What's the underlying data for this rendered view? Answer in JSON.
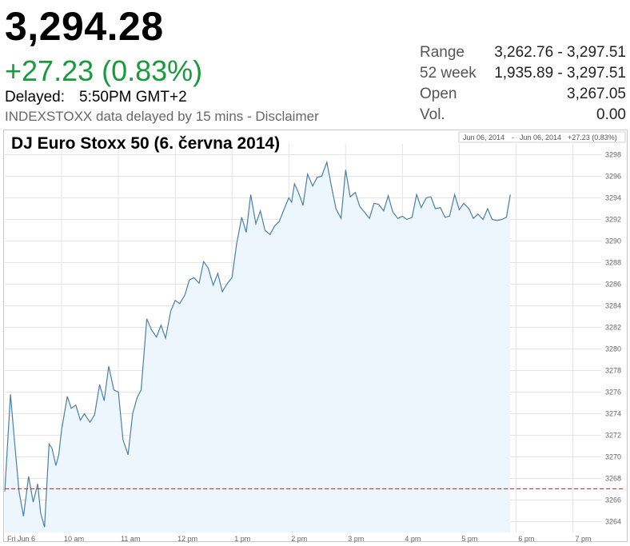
{
  "quote": {
    "price": "3,294.28",
    "change": "+27.23 (0.83%)",
    "delayed_label": "Delayed:",
    "delayed_time": "5:50PM GMT+2",
    "source_note": "INDEXSTOXX data delayed by 15 mins - Disclaimer"
  },
  "stats": [
    {
      "label": "Range",
      "value": "3,262.76 - 3,297.51"
    },
    {
      "label": "52 week",
      "value": "1,935.89 - 3,297.51"
    },
    {
      "label": "Open",
      "value": "3,267.05"
    },
    {
      "label": "Vol.",
      "value": "0.00"
    }
  ],
  "colors": {
    "line": "#4a7fa8",
    "fill": "#eef6fd",
    "positive": "#1a9a3e",
    "reference_line": "#a52a2a",
    "grid": "#e4e4e4"
  },
  "chart_data": {
    "type": "area",
    "title": "DJ Euro Stoxx 50 (6. června 2014)",
    "legend": {
      "start": "Jun 06, 2014",
      "separator": "-",
      "end": "Jun 06, 2014",
      "change": "+27.23 (0.83%)"
    },
    "x_labels": [
      "Fri Jun 6",
      "10 am",
      "11 am",
      "12 pm",
      "1 pm",
      "2 pm",
      "3 pm",
      "4 pm",
      "5 pm",
      "6 pm",
      "7 pm"
    ],
    "x_label_hours": [
      9,
      10,
      11,
      12,
      13,
      14,
      15,
      16,
      17,
      18,
      19
    ],
    "xlim": [
      9,
      19.5
    ],
    "ylim": [
      3263,
      3299
    ],
    "y_ticks": [
      3264,
      3266,
      3268,
      3270,
      3272,
      3274,
      3276,
      3278,
      3280,
      3282,
      3284,
      3286,
      3288,
      3290,
      3292,
      3294,
      3296,
      3298
    ],
    "reference_line": 3267.05,
    "series": [
      {
        "x": [
          9.0,
          9.1,
          9.17,
          9.25,
          9.33,
          9.42,
          9.5,
          9.58,
          9.63,
          9.7,
          9.78,
          9.83,
          9.9,
          9.95,
          10.0,
          10.1,
          10.17,
          10.25,
          10.33,
          10.4,
          10.5,
          10.58,
          10.67,
          10.75,
          10.83,
          10.92,
          11.0,
          11.08,
          11.17,
          11.25,
          11.33,
          11.4,
          11.5,
          11.58,
          11.67,
          11.75,
          11.83,
          11.92,
          12.0,
          12.08,
          12.17,
          12.25,
          12.33,
          12.42,
          12.5,
          12.58,
          12.67,
          12.75,
          12.83,
          12.92,
          13.0,
          13.08,
          13.17,
          13.25,
          13.33,
          13.42,
          13.5,
          13.58,
          13.67,
          13.75,
          13.83,
          13.92,
          14.0,
          14.05,
          14.1,
          14.17,
          14.25,
          14.33,
          14.42,
          14.5,
          14.58,
          14.67,
          14.75,
          14.83,
          14.92,
          15.0,
          15.08,
          15.17,
          15.25,
          15.33,
          15.42,
          15.5,
          15.58,
          15.67,
          15.75,
          15.83,
          15.92,
          16.0,
          16.08,
          16.17,
          16.25,
          16.33,
          16.42,
          16.5,
          16.58,
          16.67,
          16.75,
          16.83,
          16.92,
          17.0,
          17.08,
          17.17,
          17.25,
          17.33,
          17.42,
          17.5,
          17.58,
          17.67,
          17.75,
          17.83,
          17.9
        ],
        "y": [
          3266.8,
          3275.8,
          3271.5,
          3266.8,
          3264.5,
          3268.2,
          3265.8,
          3267.5,
          3264.8,
          3263.5,
          3271.2,
          3270.8,
          3269.2,
          3270.2,
          3272.5,
          3275.6,
          3274.5,
          3274.8,
          3273.4,
          3274.0,
          3273.2,
          3273.9,
          3276.7,
          3275.2,
          3278.4,
          3276.2,
          3276.0,
          3271.6,
          3270.2,
          3274.0,
          3275.5,
          3276.2,
          3282.8,
          3281.8,
          3281.1,
          3282.2,
          3281.0,
          3283.5,
          3284.5,
          3284.2,
          3285.0,
          3286.4,
          3286.6,
          3286.1,
          3288.1,
          3287.5,
          3285.9,
          3287.0,
          3285.3,
          3286.1,
          3286.6,
          3289.7,
          3292.2,
          3290.8,
          3294.3,
          3291.6,
          3292.8,
          3291.0,
          3290.6,
          3291.4,
          3291.8,
          3293.0,
          3294.0,
          3293.6,
          3295.3,
          3294.5,
          3293.3,
          3296.2,
          3295.1,
          3295.9,
          3296.0,
          3297.3,
          3295.1,
          3293.0,
          3292.1,
          3296.6,
          3294.1,
          3294.5,
          3293.2,
          3292.7,
          3292.1,
          3293.5,
          3293.4,
          3292.8,
          3294.2,
          3292.7,
          3292.1,
          3292.3,
          3292.0,
          3292.2,
          3294.3,
          3293.1,
          3294.0,
          3294.1,
          3293.0,
          3293.1,
          3292.2,
          3292.3,
          3294.3,
          3292.9,
          3293.5,
          3293.0,
          3292.1,
          3292.5,
          3292.0,
          3293.0,
          3292.0,
          3291.9,
          3292.0,
          3292.2,
          3294.3
        ]
      }
    ]
  }
}
